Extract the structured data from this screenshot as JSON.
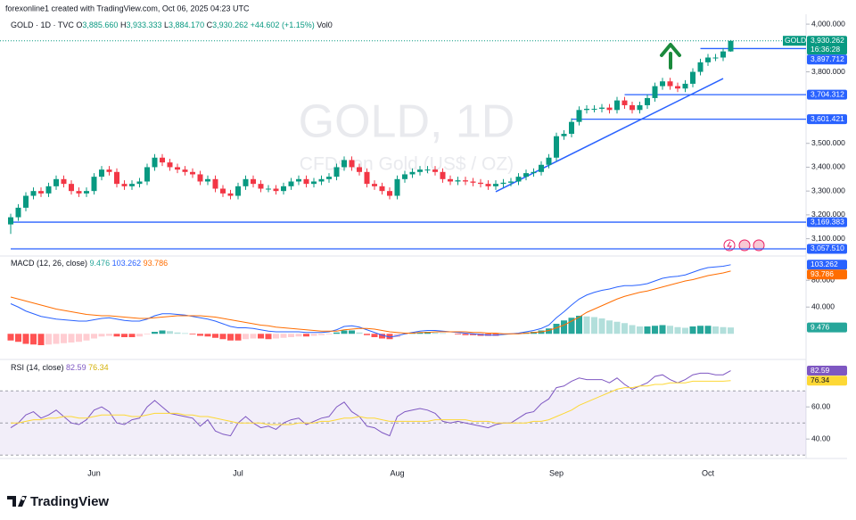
{
  "page": {
    "credit": "forexonline1 created with TradingView.com, Oct 06, 2025 04:23 UTC",
    "logo": "TradingView",
    "watermark": {
      "title": "GOLD, 1D",
      "subtitle": "CFDs on Gold (US$ / OZ)"
    }
  },
  "header": {
    "symbol": "GOLD · 1D · TVC",
    "items": [
      {
        "key": "O",
        "value": "3,885.660"
      },
      {
        "key": "H",
        "value": "3,933.333"
      },
      {
        "key": "L",
        "value": "3,884.170"
      },
      {
        "key": "C",
        "value": "3,930.262"
      }
    ],
    "change": "+44.602 (+1.15%)",
    "volume": "Vol0"
  },
  "chart_data": [
    {
      "type": "candlestick",
      "categories": [
        null,
        null,
        null,
        null,
        null,
        null,
        null,
        null,
        null,
        null,
        null,
        "Jun",
        null,
        null,
        null,
        null,
        null,
        null,
        null,
        null,
        null,
        null,
        null,
        null,
        null,
        null,
        null,
        null,
        null,
        null,
        "Jul",
        null,
        null,
        null,
        null,
        null,
        null,
        null,
        null,
        null,
        null,
        null,
        null,
        null,
        null,
        null,
        null,
        null,
        null,
        null,
        null,
        "Aug",
        null,
        null,
        null,
        null,
        null,
        null,
        null,
        null,
        null,
        null,
        null,
        null,
        null,
        null,
        null,
        null,
        null,
        null,
        null,
        null,
        "Sep",
        null,
        null,
        null,
        null,
        null,
        null,
        null,
        null,
        null,
        null,
        null,
        null,
        null,
        null,
        null,
        null,
        null,
        null,
        null,
        "Oct",
        null,
        null,
        null
      ],
      "open": [
        3160,
        3190,
        3230,
        3280,
        3300,
        3290,
        3320,
        3350,
        3330,
        3300,
        3290,
        3300,
        3360,
        3390,
        3380,
        3330,
        3320,
        3330,
        3340,
        3400,
        3440,
        3420,
        3400,
        3390,
        3380,
        3370,
        3340,
        3350,
        3310,
        3290,
        3280,
        3320,
        3350,
        3330,
        3310,
        3310,
        3300,
        3320,
        3340,
        3350,
        3330,
        3340,
        3350,
        3360,
        3400,
        3430,
        3400,
        3380,
        3330,
        3320,
        3300,
        3280,
        3350,
        3370,
        3380,
        3390,
        3390,
        3380,
        3350,
        3340,
        3345,
        3340,
        3335,
        3330,
        3320,
        3330,
        3335,
        3340,
        3360,
        3375,
        3380,
        3410,
        3440,
        3530,
        3540,
        3590,
        3640,
        3645,
        3645,
        3650,
        3640,
        3680,
        3660,
        3640,
        3660,
        3690,
        3740,
        3760,
        3740,
        3730,
        3750,
        3800,
        3840,
        3860,
        3860,
        3885.66
      ],
      "high": [
        3205,
        3245,
        3295,
        3315,
        3315,
        3335,
        3365,
        3365,
        3345,
        3315,
        3315,
        3375,
        3405,
        3405,
        3395,
        3345,
        3345,
        3355,
        3415,
        3455,
        3455,
        3435,
        3415,
        3405,
        3395,
        3385,
        3365,
        3365,
        3325,
        3305,
        3335,
        3365,
        3365,
        3345,
        3325,
        3325,
        3335,
        3355,
        3365,
        3365,
        3355,
        3365,
        3375,
        3415,
        3445,
        3445,
        3415,
        3395,
        3345,
        3335,
        3315,
        3365,
        3385,
        3395,
        3405,
        3405,
        3405,
        3395,
        3365,
        3360,
        3360,
        3355,
        3350,
        3345,
        3345,
        3350,
        3355,
        3375,
        3390,
        3395,
        3425,
        3455,
        3545,
        3555,
        3605,
        3655,
        3660,
        3660,
        3665,
        3665,
        3695,
        3695,
        3675,
        3675,
        3705,
        3755,
        3775,
        3775,
        3755,
        3765,
        3815,
        3855,
        3875,
        3875,
        3900,
        3933.333
      ],
      "low": [
        3120,
        3175,
        3215,
        3265,
        3275,
        3275,
        3305,
        3315,
        3285,
        3275,
        3275,
        3285,
        3345,
        3365,
        3315,
        3305,
        3305,
        3315,
        3325,
        3385,
        3405,
        3385,
        3375,
        3365,
        3355,
        3325,
        3325,
        3295,
        3275,
        3265,
        3265,
        3305,
        3315,
        3295,
        3295,
        3285,
        3285,
        3305,
        3325,
        3315,
        3315,
        3325,
        3335,
        3345,
        3385,
        3385,
        3365,
        3315,
        3305,
        3285,
        3265,
        3265,
        3335,
        3355,
        3365,
        3375,
        3365,
        3335,
        3325,
        3325,
        3325,
        3320,
        3315,
        3305,
        3305,
        3315,
        3320,
        3325,
        3345,
        3360,
        3365,
        3395,
        3425,
        3515,
        3525,
        3575,
        3625,
        3630,
        3630,
        3625,
        3625,
        3645,
        3625,
        3625,
        3645,
        3675,
        3725,
        3725,
        3715,
        3715,
        3735,
        3785,
        3825,
        3845,
        3845,
        3884.17
      ],
      "close": [
        3190,
        3230,
        3280,
        3300,
        3290,
        3320,
        3350,
        3330,
        3300,
        3290,
        3300,
        3360,
        3390,
        3380,
        3330,
        3320,
        3330,
        3340,
        3400,
        3440,
        3420,
        3400,
        3390,
        3380,
        3370,
        3340,
        3350,
        3310,
        3290,
        3280,
        3320,
        3350,
        3330,
        3310,
        3310,
        3300,
        3320,
        3340,
        3350,
        3330,
        3340,
        3350,
        3360,
        3400,
        3430,
        3400,
        3380,
        3330,
        3320,
        3300,
        3280,
        3350,
        3370,
        3380,
        3390,
        3390,
        3380,
        3350,
        3340,
        3345,
        3340,
        3335,
        3330,
        3320,
        3330,
        3335,
        3340,
        3360,
        3375,
        3380,
        3410,
        3440,
        3530,
        3540,
        3590,
        3640,
        3645,
        3645,
        3650,
        3640,
        3680,
        3660,
        3640,
        3660,
        3690,
        3740,
        3760,
        3740,
        3730,
        3750,
        3800,
        3840,
        3860,
        3860,
        3885.66,
        3930.262
      ],
      "colors": {
        "up": "#089981",
        "down": "#f23645",
        "level": "#2962ff",
        "tag": "#089981"
      },
      "ylim": [
        3035,
        4034
      ],
      "yticks": [
        {
          "value": 4000,
          "label": "4,000.000"
        },
        {
          "value": 3800,
          "label": "3,800.000"
        },
        {
          "value": 3500,
          "label": "3,500.000"
        },
        {
          "value": 3400,
          "label": "3,400.000"
        },
        {
          "value": 3300,
          "label": "3,300.000"
        },
        {
          "value": 3200,
          "label": "3,200.000"
        },
        {
          "value": 3100,
          "label": "3,100.000"
        }
      ],
      "price_tag": {
        "value": 3930.262,
        "label": "3,930.262",
        "countdown": "16:36:28",
        "symbol": "GOLD"
      },
      "levels": [
        {
          "value": 3897.712,
          "label": "3,897.712",
          "from": 91
        },
        {
          "value": 3704.312,
          "label": "3,704.312",
          "from": 81
        },
        {
          "value": 3601.421,
          "label": "3,601.421",
          "from": 74
        },
        {
          "value": 3169.383,
          "label": "3,169.383",
          "from": 0
        },
        {
          "value": 3057.51,
          "label": "3,057.510",
          "from": 0
        }
      ],
      "trendline": {
        "from": [
          64,
          3297
        ],
        "to": [
          94,
          3772
        ]
      }
    },
    {
      "type": "macd",
      "title": "MACD (12, 26, close)",
      "series": [
        {
          "kind": "histogram",
          "color": "#26a69a",
          "values": [
            -10,
            -12,
            -15,
            -16,
            -17,
            -16,
            -15,
            -14,
            -13,
            -12,
            -10,
            -7,
            -4,
            -3,
            -4,
            -5,
            -5,
            -4,
            -1,
            3,
            5,
            4,
            2,
            1,
            -1,
            -3,
            -4,
            -6,
            -8,
            -10,
            -10,
            -8,
            -7,
            -7,
            -8,
            -7,
            -6,
            -5,
            -4,
            -4,
            -3,
            -2,
            -1,
            2,
            5,
            5,
            2,
            -2,
            -5,
            -7,
            -8,
            -5,
            -1,
            1,
            2,
            3,
            2,
            1,
            0,
            -1,
            -2,
            -2,
            -3,
            -3,
            -3,
            -1,
            0,
            1,
            2,
            3,
            5,
            8,
            15,
            20,
            24,
            27,
            26,
            25,
            23,
            20,
            18,
            16,
            13,
            11,
            11,
            12,
            13,
            12,
            10,
            9,
            11,
            12,
            12,
            11,
            10,
            9.476
          ]
        },
        {
          "kind": "line",
          "color": "#2962ff",
          "values": [
            45,
            40,
            34,
            30,
            26,
            24,
            22,
            21,
            20,
            19,
            19,
            21,
            23,
            24,
            22,
            20,
            19,
            19,
            22,
            27,
            30,
            30,
            29,
            28,
            26,
            24,
            22,
            19,
            15,
            11,
            9,
            9,
            8,
            6,
            4,
            3,
            3,
            3,
            3,
            2,
            2,
            2,
            3,
            6,
            11,
            12,
            10,
            6,
            2,
            -2,
            -5,
            -3,
            0,
            2,
            4,
            5,
            5,
            4,
            3,
            2,
            1,
            0,
            -1,
            -2,
            -2,
            -1,
            0,
            1,
            3,
            5,
            8,
            13,
            24,
            33,
            43,
            52,
            58,
            62,
            65,
            67,
            70,
            72,
            72,
            73,
            75,
            79,
            83,
            85,
            86,
            88,
            92,
            96,
            99,
            100,
            101,
            103.262
          ]
        },
        {
          "kind": "line",
          "color": "#ff6d00",
          "values": [
            55,
            52,
            49,
            46,
            43,
            40,
            37,
            35,
            33,
            31,
            29,
            28,
            27,
            27,
            26,
            25,
            24,
            23,
            23,
            24,
            25,
            26,
            27,
            27,
            27,
            27,
            26,
            25,
            23,
            21,
            19,
            17,
            15,
            13,
            12,
            10,
            9,
            8,
            7,
            6,
            5,
            4,
            4,
            4,
            6,
            7,
            8,
            8,
            7,
            5,
            3,
            2,
            1,
            1,
            2,
            2,
            3,
            3,
            3,
            3,
            3,
            2,
            2,
            1,
            1,
            0,
            0,
            0,
            1,
            2,
            3,
            5,
            9,
            13,
            19,
            25,
            32,
            37,
            42,
            47,
            52,
            56,
            59,
            62,
            64,
            67,
            70,
            73,
            76,
            79,
            81,
            84,
            87,
            89,
            91,
            93.786
          ]
        }
      ],
      "histogram_colors": {
        "up_strong": "#26a69a",
        "up_weak": "#b2dfdb",
        "down_strong": "#ff5252",
        "down_weak": "#ffcdd2"
      },
      "ylim": [
        -37,
        115
      ],
      "yticks": [
        {
          "value": 80,
          "label": "80.000"
        },
        {
          "value": 40,
          "label": "40.000"
        }
      ]
    },
    {
      "type": "rsi",
      "title": "RSI (14, close)",
      "series": [
        {
          "kind": "line",
          "color": "#7e57c2",
          "values": [
            47,
            50,
            55,
            57,
            53,
            55,
            58,
            54,
            50,
            49,
            52,
            58,
            60,
            57,
            50,
            49,
            52,
            53,
            60,
            64,
            60,
            56,
            55,
            54,
            53,
            48,
            52,
            45,
            43,
            42,
            50,
            54,
            50,
            47,
            48,
            46,
            50,
            52,
            53,
            49,
            51,
            53,
            54,
            60,
            63,
            57,
            54,
            48,
            47,
            44,
            42,
            54,
            57,
            58,
            59,
            58,
            56,
            51,
            50,
            51,
            50,
            49,
            48,
            47,
            49,
            50,
            50,
            53,
            56,
            57,
            62,
            65,
            72,
            73,
            76,
            78,
            77,
            77,
            77,
            75,
            78,
            74,
            71,
            73,
            75,
            79,
            80,
            77,
            75,
            77,
            80,
            81,
            81,
            80,
            80,
            82.59
          ]
        },
        {
          "kind": "line",
          "color": "#fdd835",
          "values": [
            50,
            50,
            51,
            52,
            52,
            53,
            53,
            54,
            54,
            53,
            53,
            54,
            55,
            55,
            55,
            55,
            54,
            54,
            55,
            56,
            56,
            56,
            56,
            55,
            55,
            54,
            54,
            53,
            52,
            51,
            50,
            50,
            50,
            50,
            49,
            49,
            49,
            49,
            50,
            50,
            50,
            51,
            51,
            52,
            53,
            53,
            54,
            53,
            53,
            52,
            51,
            51,
            51,
            51,
            51,
            51,
            52,
            52,
            52,
            52,
            52,
            51,
            51,
            51,
            50,
            50,
            50,
            50,
            50,
            51,
            51,
            52,
            54,
            56,
            58,
            61,
            63,
            65,
            67,
            69,
            71,
            72,
            72,
            73,
            73,
            74,
            74,
            75,
            75,
            75,
            76,
            76,
            76,
            76,
            76,
            76.34
          ]
        }
      ],
      "levels": [
        70,
        50,
        30
      ],
      "band_color": "#7e57c2",
      "ylim": [
        29,
        89
      ],
      "yticks": [
        {
          "value": 60,
          "label": "60.00"
        },
        {
          "value": 40,
          "label": "40.00"
        }
      ]
    }
  ]
}
